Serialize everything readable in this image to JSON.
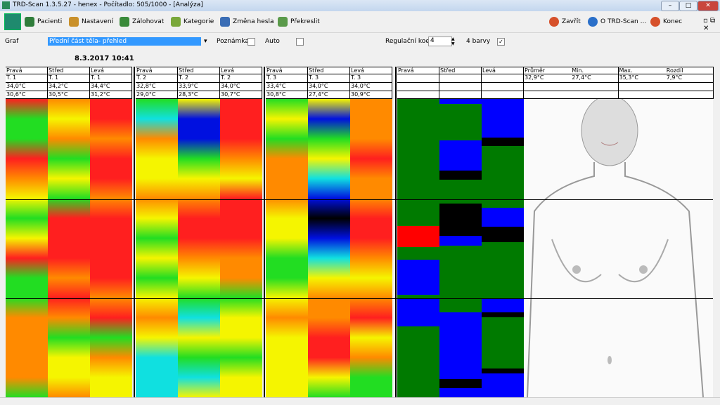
{
  "window": {
    "title": "TRD-Scan 1.3.5.27  - henex - Počítadlo: 505/1000 - [Analýza]"
  },
  "toolbar": {
    "left": [
      "Pacienti",
      "Nastavení",
      "Zálohovat",
      "Kategorie",
      "Změna hesla",
      "Překreslit"
    ],
    "right": [
      "Zavřít",
      "O TRD-Scan ...",
      "Konec"
    ]
  },
  "options": {
    "graf_label": "Graf",
    "graf_value": "Přední část těla- přehled",
    "note": "Poznámka",
    "auto": "Auto",
    "coef_label": "Regulační koef.",
    "coef_value": "4",
    "colors": "4 barvy"
  },
  "date": "8.3.2017 10:41",
  "groups": [
    {
      "columns": [
        [
          "Pravá",
          "T. 1",
          "34,0°C",
          "30,6°C"
        ],
        [
          "Střed",
          "T. 1",
          "34,2°C",
          "30,5°C"
        ],
        [
          "Levá",
          "T. 1",
          "34,4°C",
          "31,2°C"
        ]
      ]
    },
    {
      "columns": [
        [
          "Pravá",
          "T. 2",
          "32,8°C",
          "29,0°C"
        ],
        [
          "Střed",
          "T. 2",
          "33,9°C",
          "28,3°C"
        ],
        [
          "Levá",
          "T. 2",
          "34,0°C",
          "30,7°C"
        ]
      ]
    },
    {
      "columns": [
        [
          "Pravá",
          "T. 3",
          "33,4°C",
          "30,8°C"
        ],
        [
          "Střed",
          "T. 3",
          "34,0°C",
          "27,4°C"
        ],
        [
          "Levá",
          "T. 3",
          "34,0°C",
          "30,9°C"
        ]
      ]
    },
    {
      "columns": [
        [
          "Pravá"
        ],
        [
          "Střed"
        ],
        [
          "Levá"
        ]
      ]
    }
  ],
  "stats": [
    {
      "label": "Průměr",
      "value": "32,9°C"
    },
    {
      "label": "Min.",
      "value": "27,4°C"
    },
    {
      "label": "Max.",
      "value": "35,3°C"
    },
    {
      "label": "Rozdíl",
      "value": "7,9°C"
    }
  ]
}
